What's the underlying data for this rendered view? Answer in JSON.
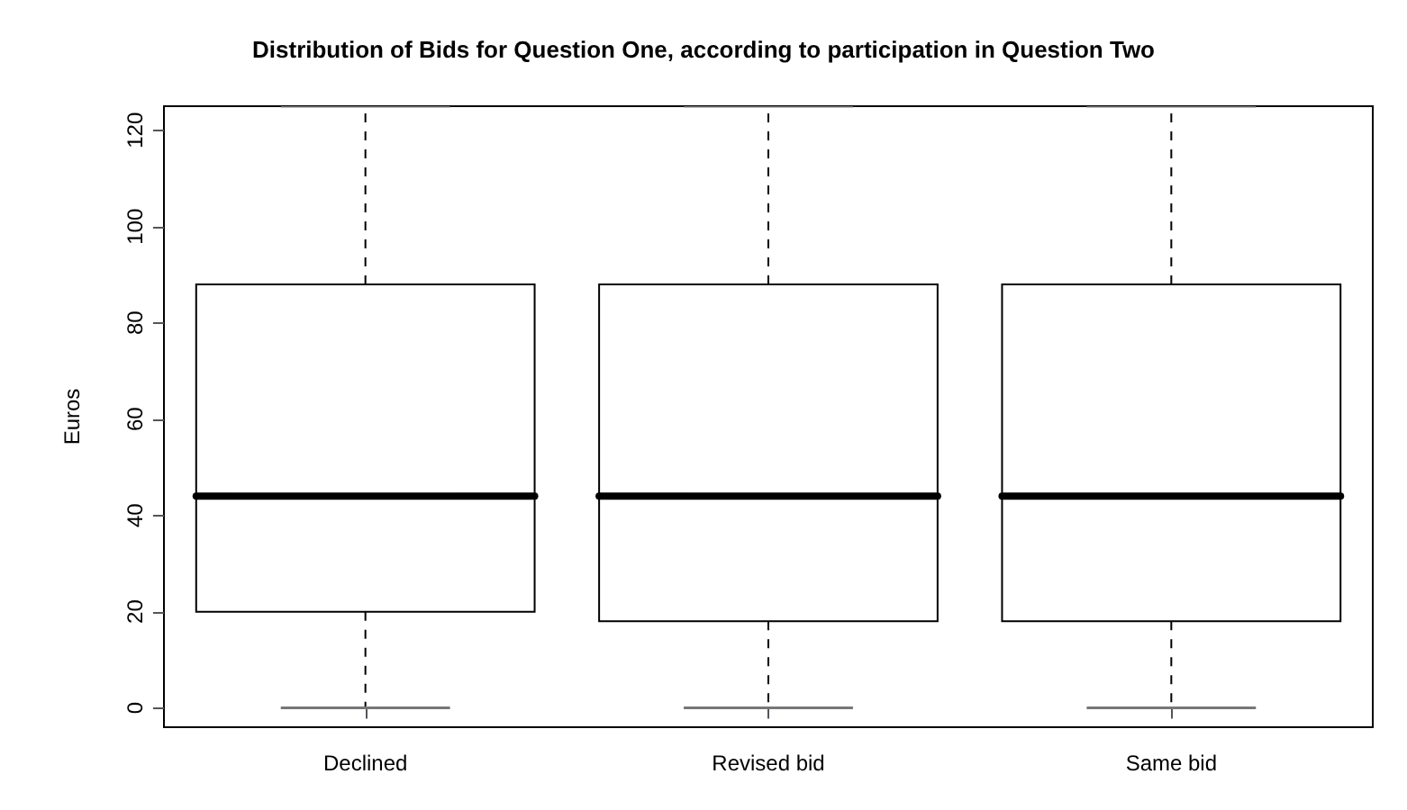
{
  "chart_data": {
    "type": "box",
    "title": "Distribution of Bids for Question One, according to participation in Question Two",
    "ylabel": "Euros",
    "categories": [
      "Declined",
      "Revised bid",
      "Same bid"
    ],
    "boxes": [
      {
        "low": 0,
        "q1": 20,
        "median": 44,
        "q3": 88,
        "high": 125
      },
      {
        "low": 0,
        "q1": 18,
        "median": 44,
        "q3": 88,
        "high": 125
      },
      {
        "low": 0,
        "q1": 18,
        "median": 44,
        "q3": 88,
        "high": 125
      }
    ],
    "ylim": [
      -4,
      125
    ],
    "yticks": [
      0,
      20,
      40,
      60,
      80,
      100,
      120
    ],
    "grid": false
  }
}
